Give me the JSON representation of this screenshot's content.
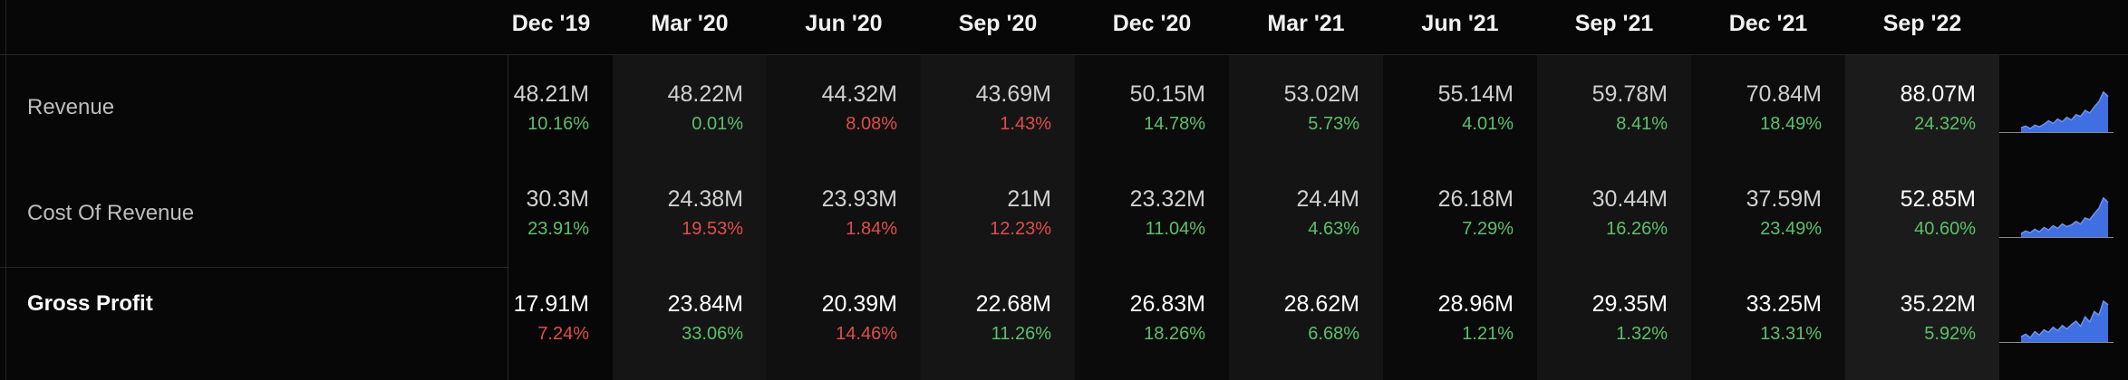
{
  "columns": [
    {
      "label": "Dec '19"
    },
    {
      "label": "Mar '20"
    },
    {
      "label": "Jun '20"
    },
    {
      "label": "Sep '20"
    },
    {
      "label": "Dec '20"
    },
    {
      "label": "Mar '21"
    },
    {
      "label": "Jun '21"
    },
    {
      "label": "Sep '21"
    },
    {
      "label": "Dec '21"
    },
    {
      "label": "Sep '22"
    }
  ],
  "rows": [
    {
      "label": "Revenue",
      "values": [
        "48.21M",
        "48.22M",
        "44.32M",
        "43.69M",
        "50.15M",
        "53.02M",
        "55.14M",
        "59.78M",
        "70.84M",
        "88.07M"
      ],
      "changes": [
        "10.16%",
        "0.01%",
        "8.08%",
        "1.43%",
        "14.78%",
        "5.73%",
        "4.01%",
        "8.41%",
        "18.49%",
        "24.32%"
      ],
      "directions": [
        "up",
        "up",
        "down",
        "down",
        "up",
        "up",
        "up",
        "up",
        "up",
        "up"
      ]
    },
    {
      "label": "Cost Of Revenue",
      "values": [
        "30.3M",
        "24.38M",
        "23.93M",
        "21M",
        "23.32M",
        "24.4M",
        "26.18M",
        "30.44M",
        "37.59M",
        "52.85M"
      ],
      "changes": [
        "23.91%",
        "19.53%",
        "1.84%",
        "12.23%",
        "11.04%",
        "4.63%",
        "7.29%",
        "16.26%",
        "23.49%",
        "40.60%"
      ],
      "directions": [
        "up",
        "down",
        "down",
        "down",
        "up",
        "up",
        "up",
        "up",
        "up",
        "up"
      ]
    },
    {
      "label": "Gross Profit",
      "values": [
        "17.91M",
        "23.84M",
        "20.39M",
        "22.68M",
        "26.83M",
        "28.62M",
        "28.96M",
        "29.35M",
        "33.25M",
        "35.22M"
      ],
      "changes": [
        "7.24%",
        "33.06%",
        "14.46%",
        "11.26%",
        "18.26%",
        "6.68%",
        "1.21%",
        "1.32%",
        "13.31%",
        "5.92%"
      ],
      "directions": [
        "down",
        "up",
        "down",
        "up",
        "up",
        "up",
        "up",
        "up",
        "up",
        "up"
      ]
    }
  ],
  "sparklines": [
    [
      0.1,
      0.14,
      0.08,
      0.16,
      0.12,
      0.18,
      0.26,
      0.2,
      0.3,
      0.24,
      0.34,
      0.28,
      0.4,
      0.36,
      0.5,
      0.44,
      0.58,
      0.7,
      0.92,
      0.82
    ],
    [
      0.08,
      0.14,
      0.1,
      0.18,
      0.12,
      0.22,
      0.16,
      0.26,
      0.2,
      0.3,
      0.24,
      0.28,
      0.36,
      0.3,
      0.44,
      0.4,
      0.54,
      0.66,
      0.9,
      0.8
    ],
    [
      0.12,
      0.18,
      0.1,
      0.24,
      0.16,
      0.28,
      0.22,
      0.34,
      0.26,
      0.38,
      0.3,
      0.4,
      0.48,
      0.36,
      0.58,
      0.46,
      0.7,
      0.62,
      0.94,
      0.86
    ]
  ],
  "colors": {
    "up": "#5bc06a",
    "down": "#e14c4c",
    "spark_fill": "#3f6fe0",
    "spark_line": "#6d93f2",
    "spark_baseline": "#8b8b8b"
  }
}
